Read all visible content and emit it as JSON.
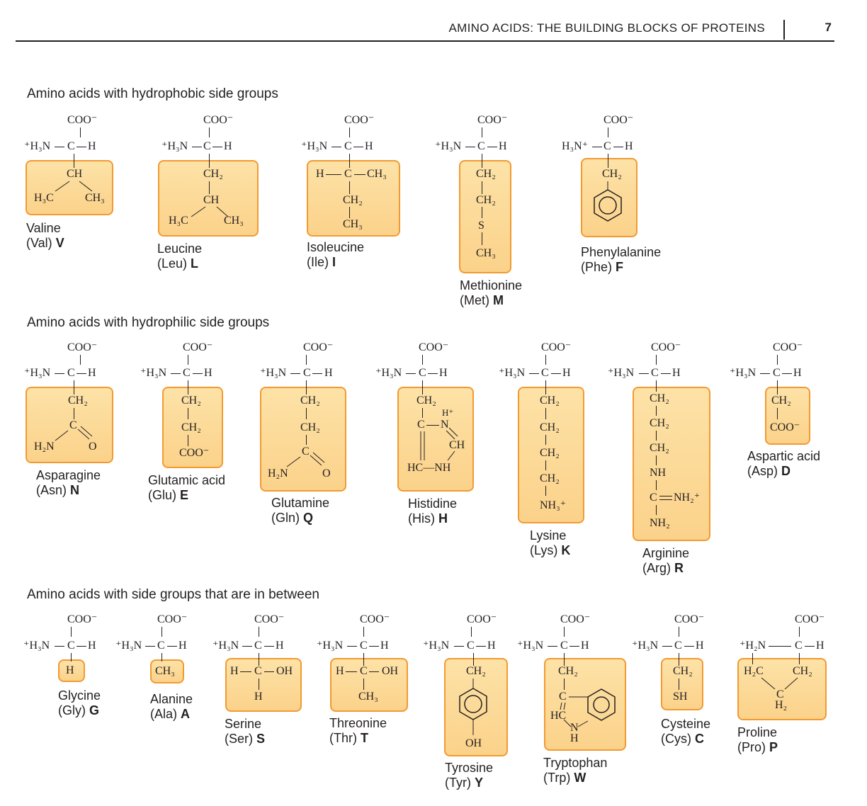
{
  "header": {
    "running_title": "AMINO ACIDS: THE BUILDING BLOCKS OF PROTEINS",
    "page_number": "7"
  },
  "sections": {
    "hydrophobic": "Amino acids with hydrophobic side groups",
    "hydrophilic": "Amino acids with hydrophilic side groups",
    "between": "Amino acids with side groups that are in between"
  },
  "amino_acids": {
    "val": {
      "name": "Valine",
      "abbr": "(Val)",
      "code": "V"
    },
    "leu": {
      "name": "Leucine",
      "abbr": "(Leu)",
      "code": "L"
    },
    "ile": {
      "name": "Isoleucine",
      "abbr": "(Ile)",
      "code": "I"
    },
    "met": {
      "name": "Methionine",
      "abbr": "(Met)",
      "code": "M"
    },
    "phe": {
      "name": "Phenylalanine",
      "abbr": "(Phe)",
      "code": "F"
    },
    "asn": {
      "name": "Asparagine",
      "abbr": "(Asn)",
      "code": "N"
    },
    "glu": {
      "name": "Glutamic acid",
      "abbr": "(Glu)",
      "code": "E"
    },
    "gln": {
      "name": "Glutamine",
      "abbr": "(Gln)",
      "code": "Q"
    },
    "his": {
      "name": "Histidine",
      "abbr": "(His)",
      "code": "H"
    },
    "lys": {
      "name": "Lysine",
      "abbr": "(Lys)",
      "code": "K"
    },
    "arg": {
      "name": "Arginine",
      "abbr": "(Arg)",
      "code": "R"
    },
    "asp": {
      "name": "Aspartic acid",
      "abbr": "(Asp)",
      "code": "D"
    },
    "gly": {
      "name": "Glycine",
      "abbr": "(Gly)",
      "code": "G"
    },
    "ala": {
      "name": "Alanine",
      "abbr": "(Ala)",
      "code": "A"
    },
    "ser": {
      "name": "Serine",
      "abbr": "(Ser)",
      "code": "S"
    },
    "thr": {
      "name": "Threonine",
      "abbr": "(Thr)",
      "code": "T"
    },
    "tyr": {
      "name": "Tyrosine",
      "abbr": "(Tyr)",
      "code": "Y"
    },
    "trp": {
      "name": "Tryptophan",
      "abbr": "(Trp)",
      "code": "W"
    },
    "cys": {
      "name": "Cysteine",
      "abbr": "(Cys)",
      "code": "C"
    },
    "pro": {
      "name": "Proline",
      "abbr": "(Pro)",
      "code": "P"
    }
  },
  "chem": {
    "coo": "COO⁻",
    "h3n": "⁺H₃N",
    "h3n_right": "H₃N⁺",
    "h2n_plus": "⁺H₂N",
    "c": "C",
    "h": "H",
    "ch": "CH",
    "ch2": "CH₂",
    "ch3": "CH₃",
    "h3c": "H₃C",
    "h2c": "H₂C",
    "h2n": "H₂N",
    "o": "O",
    "s": "S",
    "oh": "OH",
    "sh": "SH",
    "nh": "NH",
    "nh2": "NH₂",
    "nh3_plus": "NH₃⁺",
    "nh2_plus": "NH₂⁺",
    "hc": "HC",
    "hc_nh": "HC—NH",
    "n": "N",
    "h_plus": "H⁺",
    "c_h2": "H₂"
  }
}
